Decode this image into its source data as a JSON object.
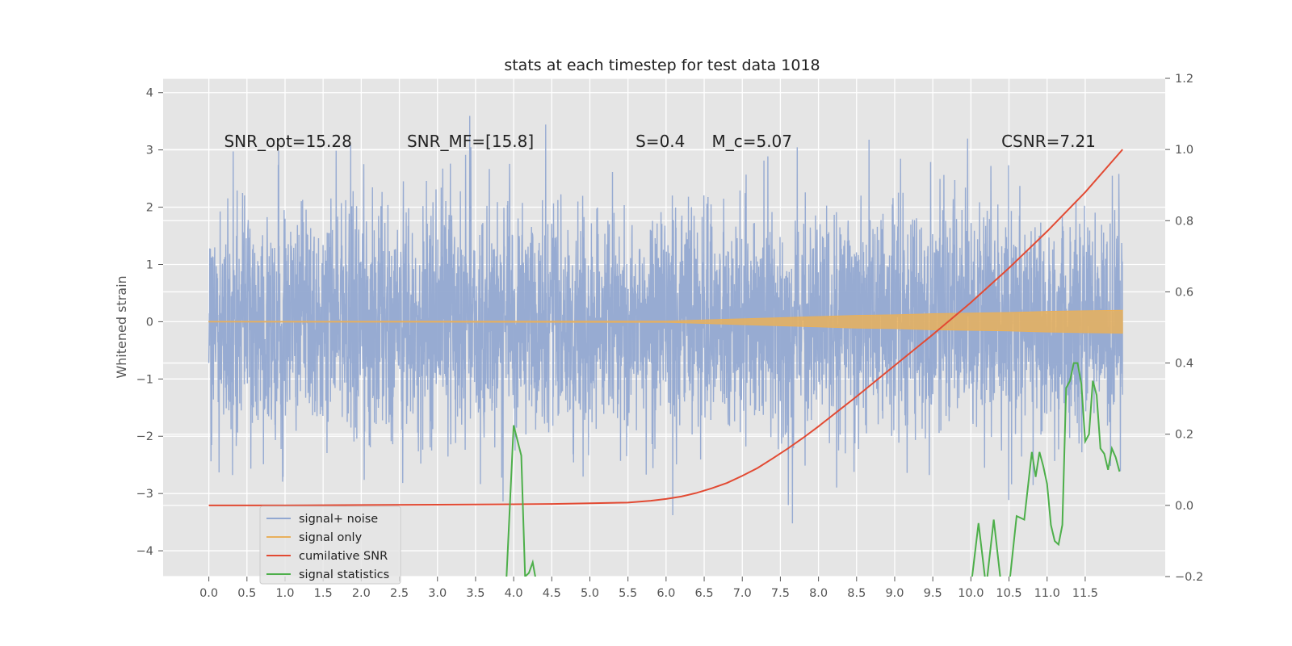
{
  "chart_data": {
    "type": "line",
    "title": "stats at each timestep for test data 1018",
    "ylabel": "Whitened strain",
    "xlim": [
      -0.6,
      12.55
    ],
    "ylim": [
      -4.45,
      4.25
    ],
    "y2lim": [
      -0.2,
      1.2
    ],
    "x_ticks": [
      0.0,
      0.5,
      1.0,
      1.5,
      2.0,
      2.5,
      3.0,
      3.5,
      4.0,
      4.5,
      5.0,
      5.5,
      6.0,
      6.5,
      7.0,
      7.5,
      8.0,
      8.5,
      9.0,
      9.5,
      10.0,
      10.5,
      11.0,
      11.5
    ],
    "x_tick_labels": [
      "0.0",
      "0.5",
      "1.0",
      "1.5",
      "2.0",
      "2.5",
      "3.0",
      "3.5",
      "4.0",
      "4.5",
      "5.0",
      "5.5",
      "6.0",
      "6.5",
      "7.0",
      "7.5",
      "8.0",
      "8.5",
      "9.0",
      "9.5",
      "10.0",
      "10.5",
      "11.0",
      "11.5"
    ],
    "y_ticks": [
      -4,
      -3,
      -2,
      -1,
      0,
      1,
      2,
      3,
      4
    ],
    "y_tick_labels": [
      "−4",
      "−3",
      "−2",
      "−1",
      "0",
      "1",
      "2",
      "3",
      "4"
    ],
    "y2_ticks": [
      -0.2,
      0.0,
      0.2,
      0.4,
      0.6,
      0.8,
      1.0,
      1.2
    ],
    "y2_tick_labels": [
      "−0.2",
      "0.0",
      "0.2",
      "0.4",
      "0.6",
      "0.8",
      "1.0",
      "1.2"
    ],
    "grid": true,
    "legend_position": "lower-left",
    "annotations": [
      {
        "text": "SNR_opt=15.28",
        "x": 0.2,
        "y": 3.05
      },
      {
        "text": "SNR_MF=[15.8]",
        "x": 2.6,
        "y": 3.05
      },
      {
        "text": "S=0.4",
        "x": 5.6,
        "y": 3.05
      },
      {
        "text": "M_c=5.07",
        "x": 6.6,
        "y": 3.05
      },
      {
        "text": "CSNR=7.21",
        "x": 10.4,
        "y": 3.05
      }
    ],
    "noise_envelope": {
      "x_range": [
        0.0,
        11.99
      ],
      "core_band": [
        -1.8,
        1.8
      ],
      "typical_peaks": [
        -3.0,
        3.0
      ]
    },
    "series": [
      {
        "name": "signal+ noise",
        "color": "#92a8d1",
        "axis": "left",
        "note": "dense noise waveform, approx gaussian sigma 1",
        "x": [
          0.0,
          11.99
        ]
      },
      {
        "name": "signal only",
        "color": "#e8b05c",
        "axis": "left",
        "x": [
          0.0,
          6.0,
          6.5,
          7.0,
          7.5,
          8.0,
          8.5,
          9.0,
          9.5,
          10.0,
          10.5,
          11.0,
          11.5,
          11.99
        ],
        "envelope": [
          0.005,
          0.01,
          0.03,
          0.05,
          0.07,
          0.09,
          0.11,
          0.12,
          0.14,
          0.15,
          0.16,
          0.18,
          0.19,
          0.2
        ]
      },
      {
        "name": "cumilative SNR",
        "color": "#e24a33",
        "axis": "right",
        "x": [
          0.0,
          1.0,
          2.0,
          3.0,
          4.0,
          4.5,
          5.0,
          5.5,
          5.8,
          6.0,
          6.2,
          6.4,
          6.6,
          6.8,
          7.0,
          7.2,
          7.4,
          7.6,
          7.8,
          8.0,
          8.5,
          9.0,
          9.5,
          10.0,
          10.5,
          11.0,
          11.5,
          11.99
        ],
        "values": [
          0.0,
          0.0,
          0.001,
          0.002,
          0.003,
          0.004,
          0.006,
          0.008,
          0.013,
          0.018,
          0.025,
          0.035,
          0.048,
          0.063,
          0.083,
          0.105,
          0.132,
          0.16,
          0.19,
          0.222,
          0.306,
          0.393,
          0.48,
          0.57,
          0.667,
          0.77,
          0.88,
          1.0
        ]
      },
      {
        "name": "signal statistics",
        "color": "#4daf4a",
        "axis": "right",
        "x": [
          3.9,
          4.0,
          4.1,
          4.15,
          4.2,
          4.25,
          4.3,
          10.0,
          10.1,
          10.2,
          10.3,
          10.4,
          10.5,
          10.6,
          10.65,
          10.7,
          10.8,
          10.85,
          10.9,
          10.95,
          11.0,
          11.05,
          11.1,
          11.15,
          11.2,
          11.25,
          11.3,
          11.35,
          11.4,
          11.45,
          11.5,
          11.55,
          11.6,
          11.65,
          11.7,
          11.75,
          11.8,
          11.85,
          11.9,
          11.95
        ],
        "values": [
          -0.23,
          0.225,
          0.14,
          -0.2,
          -0.19,
          -0.16,
          -0.22,
          -0.23,
          -0.05,
          -0.23,
          -0.04,
          -0.23,
          -0.23,
          -0.03,
          -0.035,
          -0.04,
          0.15,
          0.08,
          0.15,
          0.11,
          0.06,
          -0.055,
          -0.1,
          -0.11,
          -0.055,
          0.33,
          0.35,
          0.4,
          0.4,
          0.34,
          0.18,
          0.2,
          0.35,
          0.31,
          0.16,
          0.145,
          0.1,
          0.16,
          0.135,
          0.095
        ]
      }
    ],
    "legend": [
      "signal+ noise",
      "signal only",
      "cumilative SNR",
      "signal statistics"
    ]
  },
  "colors": {
    "axes_bg": "#e5e5e5",
    "grid": "#ffffff",
    "text": "#555555",
    "title": "#222222"
  }
}
